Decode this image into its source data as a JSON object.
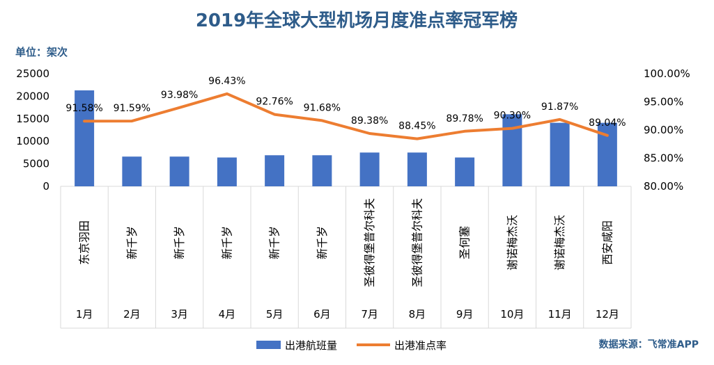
{
  "chart_data": {
    "type": "bar",
    "title": "2019年全球大型机场月度准点率冠军榜",
    "unit_label": "单位：架次",
    "source": "数据来源：飞常准APP",
    "months": [
      "1月",
      "2月",
      "3月",
      "4月",
      "5月",
      "6月",
      "7月",
      "8月",
      "9月",
      "10月",
      "11月",
      "12月"
    ],
    "airports": [
      "东京羽田",
      "新千岁",
      "新千岁",
      "新千岁",
      "新千岁",
      "新千岁",
      "圣彼得堡普尔科夫",
      "圣彼得堡普尔科夫",
      "圣何塞",
      "谢诺梅杰沃",
      "谢诺梅杰沃",
      "西安咸阳"
    ],
    "left_axis": {
      "min": 0,
      "max": 25000,
      "ticks": [
        "0",
        "5000",
        "10000",
        "15000",
        "20000",
        "25000"
      ]
    },
    "right_axis": {
      "min": 80,
      "max": 100,
      "ticks": [
        "80.00%",
        "85.00%",
        "90.00%",
        "95.00%",
        "100.00%"
      ]
    },
    "series": [
      {
        "name": "出港航班量",
        "type": "bar",
        "axis": "left",
        "color": "#4472c4",
        "values": [
          21300,
          6600,
          6600,
          6400,
          6900,
          6900,
          7500,
          7500,
          6400,
          16000,
          14100,
          14100
        ]
      },
      {
        "name": "出港准点率",
        "type": "line",
        "axis": "right",
        "color": "#ed7d31",
        "values": [
          91.58,
          91.59,
          93.98,
          96.43,
          92.76,
          91.68,
          89.38,
          88.45,
          89.78,
          90.3,
          91.87,
          89.04
        ],
        "labels": [
          "91.58%",
          "91.59%",
          "93.98%",
          "96.43%",
          "92.76%",
          "91.68%",
          "89.38%",
          "88.45%",
          "89.78%",
          "90.30%",
          "91.87%",
          "89.04%"
        ]
      }
    ],
    "grid": false,
    "legend_position": "bottom"
  }
}
